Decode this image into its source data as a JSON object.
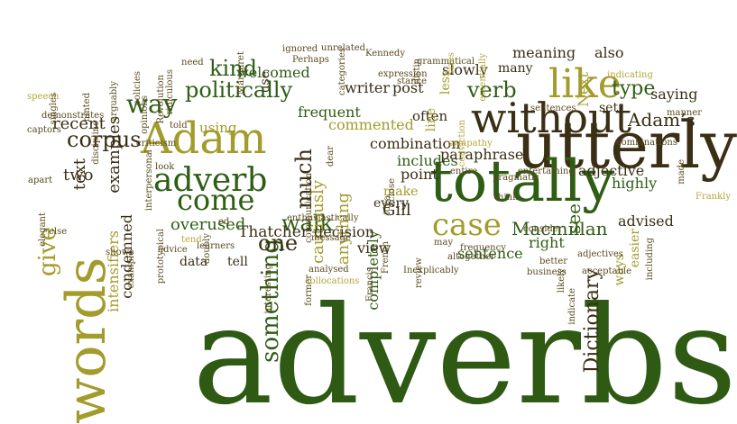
{
  "palette": {
    "dark_green": "#2e5d14",
    "forest_green": "#3b6e1c",
    "olive": "#9a9526",
    "khaki": "#b5a63a",
    "dark_brown": "#3b3117",
    "brown": "#5a4a1e",
    "gray_green": "#6a6a3a"
  },
  "words": [
    {
      "text": "adverbs",
      "color": "#2f5a13"
    },
    {
      "text": "utterly",
      "color": "#3a2f14"
    },
    {
      "text": "totally",
      "color": "#2e5d14"
    },
    {
      "text": "without",
      "color": "#3a2f14"
    },
    {
      "text": "words",
      "color": "#a39b2b"
    },
    {
      "text": "Adam",
      "color": "#a39b2b"
    },
    {
      "text": "like",
      "color": "#a39b2b"
    },
    {
      "text": "adverb",
      "color": "#2e5d14"
    },
    {
      "text": "give",
      "color": "#a39b2b"
    },
    {
      "text": "case",
      "color": "#a39b2b"
    },
    {
      "text": "come",
      "color": "#2e5d14"
    },
    {
      "text": "way",
      "color": "#2e5d14"
    },
    {
      "text": "politically",
      "color": "#2e5d14"
    },
    {
      "text": "kind",
      "color": "#2e5d14"
    },
    {
      "text": "corpus",
      "color": "#3a2f14"
    },
    {
      "text": "something",
      "color": "#2e5d14"
    },
    {
      "text": "much",
      "color": "#3a2f14"
    },
    {
      "text": "walk",
      "color": "#2e5d14"
    },
    {
      "text": "one",
      "color": "#3a2f14"
    },
    {
      "text": "verb",
      "color": "#2e5d14"
    },
    {
      "text": "type",
      "color": "#2e5d14"
    },
    {
      "text": "Adam’s",
      "color": "#3a2f14"
    },
    {
      "text": "see",
      "color": "#2e5d14"
    },
    {
      "text": "Dictionary",
      "color": "#3a2f14"
    },
    {
      "text": "Macmillan",
      "color": "#2e5d14"
    },
    {
      "text": "Gill",
      "color": "#3a2f14"
    },
    {
      "text": "Thatcher",
      "color": "#3a2f14"
    },
    {
      "text": "overused",
      "color": "#2e5d14"
    },
    {
      "text": "examples",
      "color": "#3a2f14"
    },
    {
      "text": "recent",
      "color": "#3a2f14"
    },
    {
      "text": "two",
      "color": "#3a2f14"
    },
    {
      "text": "text",
      "color": "#3a2f14"
    },
    {
      "text": "intensifiers",
      "color": "#a39b2b"
    },
    {
      "text": "condemned",
      "color": "#3a2f14"
    },
    {
      "text": "cautiously",
      "color": "#a39b2b"
    },
    {
      "text": "anything",
      "color": "#a39b2b"
    },
    {
      "text": "completely",
      "color": "#2e5d14"
    },
    {
      "text": "decision",
      "color": "#3a2f14"
    },
    {
      "text": "view",
      "color": "#3a2f14"
    },
    {
      "text": "data",
      "color": "#3a2f14"
    },
    {
      "text": "tell",
      "color": "#3a2f14"
    },
    {
      "text": "using",
      "color": "#a39b2b"
    },
    {
      "text": "welcomed",
      "color": "#2e5d14"
    },
    {
      "text": "frequent",
      "color": "#2e5d14"
    },
    {
      "text": "writer",
      "color": "#3a2f14"
    },
    {
      "text": "post",
      "color": "#3a2f14"
    },
    {
      "text": "commented",
      "color": "#a39b2b"
    },
    {
      "text": "often",
      "color": "#3a2f14"
    },
    {
      "text": "combination",
      "color": "#3a2f14"
    },
    {
      "text": "includes",
      "color": "#2e5d14"
    },
    {
      "text": "paraphrase",
      "color": "#3a2f14"
    },
    {
      "text": "point",
      "color": "#3a2f14"
    },
    {
      "text": "make",
      "color": "#a39b2b"
    },
    {
      "text": "every",
      "color": "#3a2f14"
    },
    {
      "text": "right",
      "color": "#2e5d14"
    },
    {
      "text": "sentence",
      "color": "#2e5d14"
    },
    {
      "text": "slowly",
      "color": "#3a2f14"
    },
    {
      "text": "many",
      "color": "#3a2f14"
    },
    {
      "text": "meaning",
      "color": "#3a2f14"
    },
    {
      "text": "Next",
      "color": "#a39b2b"
    },
    {
      "text": "also",
      "color": "#3a2f14"
    },
    {
      "text": "less",
      "color": "#a39b2b"
    },
    {
      "text": "line",
      "color": "#a39b2b"
    },
    {
      "text": "saying",
      "color": "#3a2f14"
    },
    {
      "text": "set",
      "color": "#3a2f14"
    },
    {
      "text": "adjective",
      "color": "#3a2f14"
    },
    {
      "text": "highly",
      "color": "#2e5d14"
    },
    {
      "text": "advised",
      "color": "#3a2f14"
    },
    {
      "text": "easier",
      "color": "#a39b2b"
    },
    {
      "text": "ways",
      "color": "#a39b2b"
    },
    {
      "text": "use",
      "color": "#3a2f14"
    },
    {
      "text": "speech",
      "color": "#b5a63a"
    },
    {
      "text": "singles",
      "color": "#5a4a1e"
    },
    {
      "text": "captors",
      "color": "#5a4a1e"
    },
    {
      "text": "demonstrates",
      "color": "#5a4a1e"
    },
    {
      "text": "hinted",
      "color": "#5a4a1e"
    },
    {
      "text": "discipline",
      "color": "#5a4a1e"
    },
    {
      "text": "arguably",
      "color": "#5a4a1e"
    },
    {
      "text": "policies",
      "color": "#5a4a1e"
    },
    {
      "text": "opinions",
      "color": "#5a4a1e"
    },
    {
      "text": "Revolution",
      "color": "#5a4a1e"
    },
    {
      "text": "ridiculous",
      "color": "#5a4a1e"
    },
    {
      "text": "need",
      "color": "#5a4a1e"
    },
    {
      "text": "Margaret",
      "color": "#5a4a1e"
    },
    {
      "text": "ignored",
      "color": "#5a4a1e"
    },
    {
      "text": "Perhaps",
      "color": "#5a4a1e"
    },
    {
      "text": "unrelated",
      "color": "#5a4a1e"
    },
    {
      "text": "categories",
      "color": "#5a4a1e"
    },
    {
      "text": "Kennedy",
      "color": "#5a4a1e"
    },
    {
      "text": "expression",
      "color": "#5a4a1e"
    },
    {
      "text": "stance",
      "color": "#5a4a1e"
    },
    {
      "text": "grammatical",
      "color": "#5a4a1e"
    },
    {
      "text": "distin",
      "color": "#5a4a1e"
    },
    {
      "text": "sizes",
      "color": "#b5a63a"
    },
    {
      "text": "essentially",
      "color": "#b5a63a"
    },
    {
      "text": "indicating",
      "color": "#b5a63a"
    },
    {
      "text": "sentences",
      "color": "#5a4a1e"
    },
    {
      "text": "manner",
      "color": "#5a4a1e"
    },
    {
      "text": "combinations",
      "color": "#5a4a1e"
    },
    {
      "text": "made",
      "color": "#5a4a1e"
    },
    {
      "text": "Frankly",
      "color": "#b5a63a"
    },
    {
      "text": "told",
      "color": "#5a4a1e"
    },
    {
      "text": "look",
      "color": "#5a4a1e"
    },
    {
      "text": "criticism",
      "color": "#5a4a1e"
    },
    {
      "text": "interpersonal",
      "color": "#5a4a1e"
    },
    {
      "text": "apart",
      "color": "#5a4a1e"
    },
    {
      "text": "elegant",
      "color": "#5a4a1e"
    },
    {
      "text": "else",
      "color": "#5a4a1e"
    },
    {
      "text": "example",
      "color": "#5a4a1e"
    },
    {
      "text": "shows",
      "color": "#5a4a1e"
    },
    {
      "text": "prototypical",
      "color": "#5a4a1e"
    },
    {
      "text": "advice",
      "color": "#5a4a1e"
    },
    {
      "text": "learners",
      "color": "#5a4a1e"
    },
    {
      "text": "doubly",
      "color": "#5a4a1e"
    },
    {
      "text": "ed",
      "color": "#5a4a1e"
    },
    {
      "text": "tend",
      "color": "#b5a63a"
    },
    {
      "text": "enthusiastically",
      "color": "#5a4a1e"
    },
    {
      "text": "message",
      "color": "#5a4a1e"
    },
    {
      "text": "communication",
      "color": "#5a4a1e"
    },
    {
      "text": "dear",
      "color": "#5a4a1e"
    },
    {
      "text": "interesting",
      "color": "#5a4a1e"
    },
    {
      "text": "former",
      "color": "#5a4a1e"
    },
    {
      "text": "analysed",
      "color": "#5a4a1e"
    },
    {
      "text": "collocations",
      "color": "#b5a63a"
    },
    {
      "text": "Francis",
      "color": "#5a4a1e"
    },
    {
      "text": "French",
      "color": "#5a4a1e"
    },
    {
      "text": "Inexplicably",
      "color": "#5a4a1e"
    },
    {
      "text": "sympathy",
      "color": "#b5a63a"
    },
    {
      "text": "idea",
      "color": "#5a4a1e"
    },
    {
      "text": "close",
      "color": "#5a4a1e"
    },
    {
      "text": "entire",
      "color": "#5a4a1e"
    },
    {
      "text": "review",
      "color": "#5a4a1e"
    },
    {
      "text": "may",
      "color": "#5a4a1e"
    },
    {
      "text": "altogether",
      "color": "#5a4a1e"
    },
    {
      "text": "frequency",
      "color": "#5a4a1e"
    },
    {
      "text": "pragmatic",
      "color": "#5a4a1e"
    },
    {
      "text": "entertaining",
      "color": "#5a4a1e"
    },
    {
      "text": "think",
      "color": "#5a4a1e"
    },
    {
      "text": "consider",
      "color": "#5a4a1e"
    },
    {
      "text": "business",
      "color": "#5a4a1e"
    },
    {
      "text": "better",
      "color": "#5a4a1e"
    },
    {
      "text": "likely",
      "color": "#5a4a1e"
    },
    {
      "text": "indicate",
      "color": "#5a4a1e"
    },
    {
      "text": "adjectives",
      "color": "#5a4a1e"
    },
    {
      "text": "acceptable",
      "color": "#5a4a1e"
    },
    {
      "text": "including",
      "color": "#5a4a1e"
    },
    {
      "text": "conviction",
      "color": "#b5a63a"
    },
    {
      "text": "time",
      "color": "#b5a63a"
    }
  ]
}
